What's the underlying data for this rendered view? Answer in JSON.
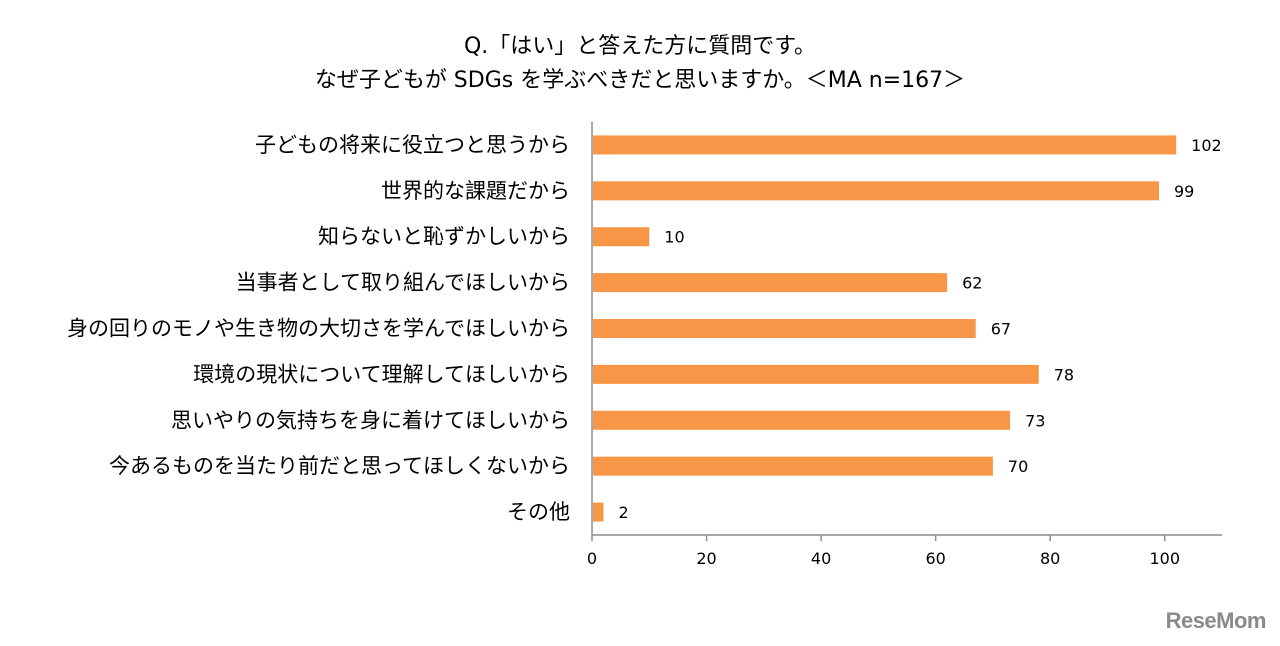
{
  "chart_data": {
    "type": "bar",
    "orientation": "horizontal",
    "title": "Q.「はい」と答えた方に質問です。",
    "subtitle": "なぜ子どもが SDGs を学ぶべきだと思いますか。＜MA n=167＞",
    "categories": [
      "子どもの将来に役立つと思うから",
      "世界的な課題だから",
      "知らないと恥ずかしいから",
      "当事者として取り組んでほしいから",
      "身の回りのモノや生き物の大切さを学んでほしいから",
      "環境の現状について理解してほしいから",
      "思いやりの気持ちを身に着けてほしいから",
      "今あるものを当たり前だと思ってほしくないから",
      "その他"
    ],
    "values": [
      102,
      99,
      10,
      62,
      67,
      78,
      73,
      70,
      2
    ],
    "xlim": [
      0,
      110
    ],
    "xticks": [
      0,
      20,
      40,
      60,
      80,
      100
    ],
    "bar_color": "#f79646",
    "grid": false,
    "legend": false,
    "data_labels": true
  },
  "logo_text": "ReseMom"
}
